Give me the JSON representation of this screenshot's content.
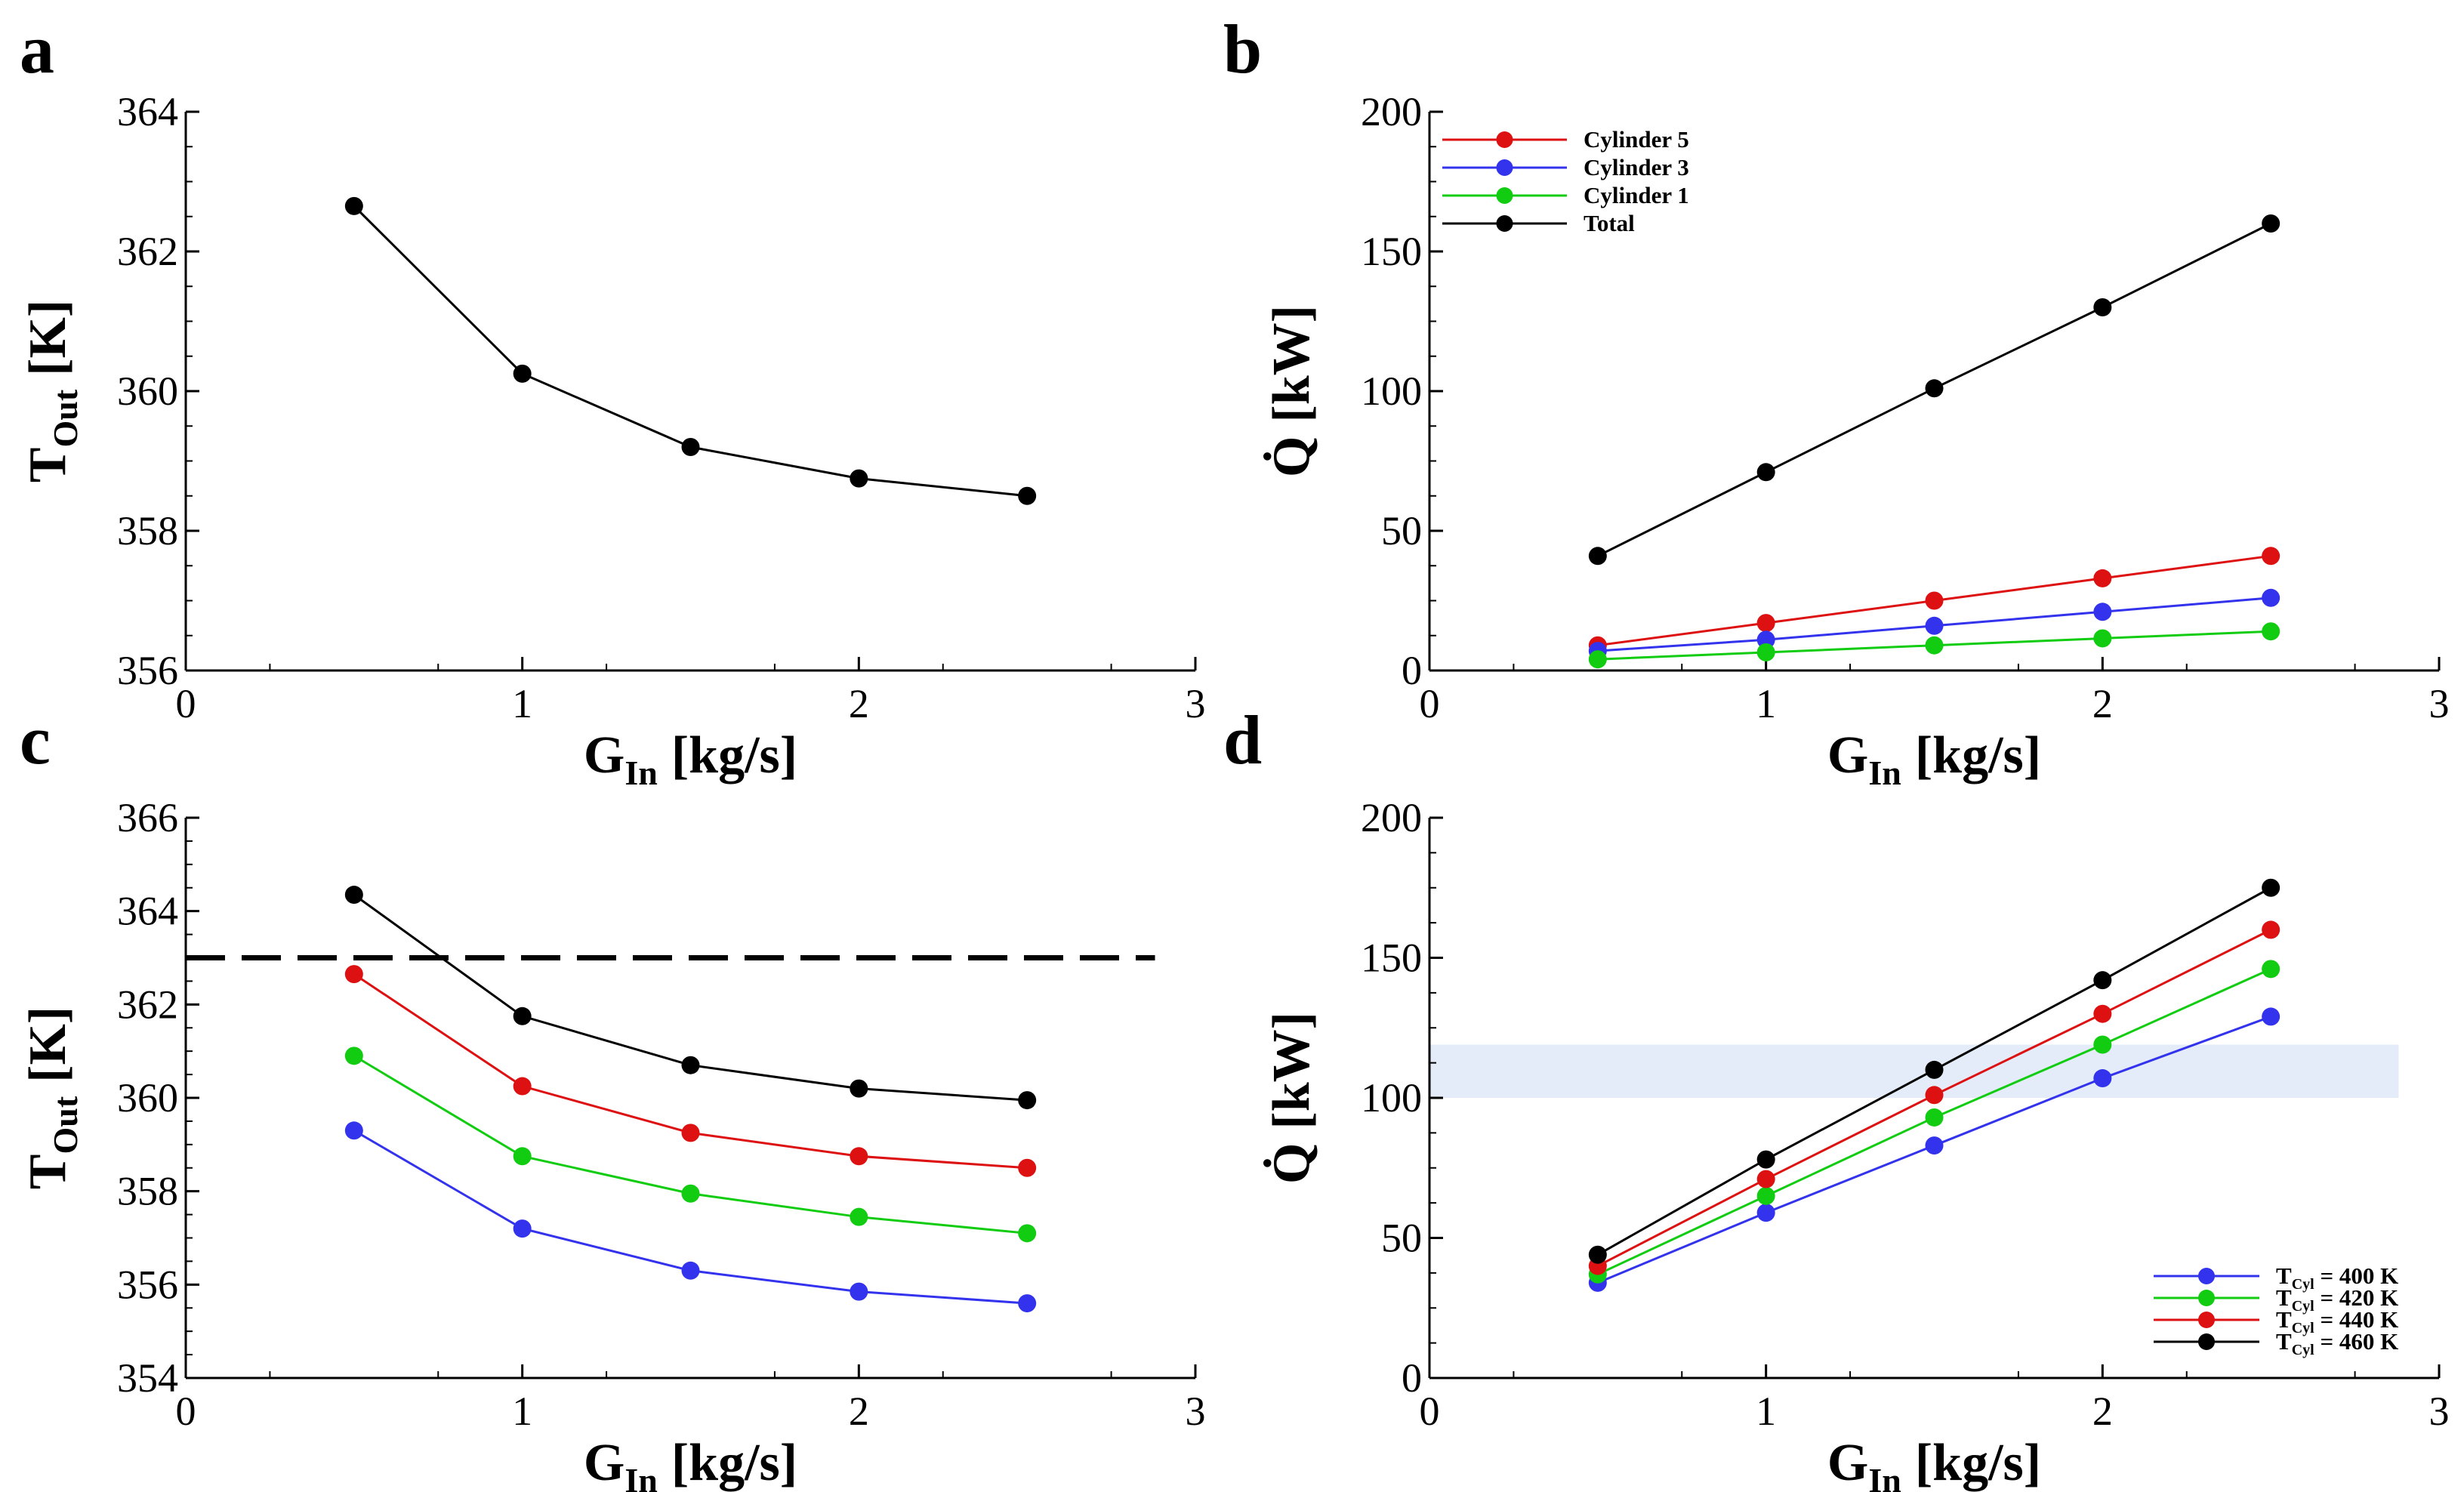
{
  "figure": {
    "panels": [
      "a",
      "b",
      "c",
      "d"
    ]
  },
  "chart_data": [
    {
      "panel": "a",
      "type": "line",
      "xlabel": "G",
      "xlabel_sub": "In",
      "xlabel_unit": "[kg/s]",
      "ylabel": "T",
      "ylabel_sub": "Out",
      "ylabel_unit": "[K]",
      "xlim": [
        0,
        3
      ],
      "ylim": [
        356,
        364
      ],
      "xticks": [
        0,
        1,
        2,
        3
      ],
      "yticks": [
        356,
        358,
        360,
        362,
        364
      ],
      "series": [
        {
          "name": "T_Out",
          "color": "#000000",
          "x": [
            0.5,
            1.0,
            1.5,
            2.0,
            2.5
          ],
          "values": [
            362.65,
            360.25,
            359.2,
            358.75,
            358.5
          ]
        }
      ],
      "legend": []
    },
    {
      "panel": "b",
      "type": "line",
      "xlabel": "G",
      "xlabel_sub": "In",
      "xlabel_unit": "[kg/s]",
      "ylabel": "Q̇",
      "ylabel_sub": "",
      "ylabel_unit": "[kW]",
      "xlim": [
        0,
        3
      ],
      "ylim": [
        0,
        200
      ],
      "xticks": [
        0,
        1,
        2,
        3
      ],
      "yticks": [
        0,
        50,
        100,
        150,
        200
      ],
      "legend_position": "top-left",
      "series": [
        {
          "name": "Cylinder 5",
          "color": "#dd1111",
          "x": [
            0.5,
            1.0,
            1.5,
            2.0,
            2.5
          ],
          "values": [
            9,
            17,
            25,
            33,
            41
          ]
        },
        {
          "name": "Cylinder 3",
          "color": "#3333ee",
          "x": [
            0.5,
            1.0,
            1.5,
            2.0,
            2.5
          ],
          "values": [
            7,
            11,
            16,
            21,
            26
          ]
        },
        {
          "name": "Cylinder 1",
          "color": "#11cc11",
          "x": [
            0.5,
            1.0,
            1.5,
            2.0,
            2.5
          ],
          "values": [
            4,
            6.5,
            9,
            11.5,
            14
          ]
        },
        {
          "name": "Total",
          "color": "#000000",
          "x": [
            0.5,
            1.0,
            1.5,
            2.0,
            2.5
          ],
          "values": [
            41,
            71,
            101,
            130,
            160
          ]
        }
      ],
      "legend": [
        {
          "label": "Cylinder 5",
          "sub": "",
          "suffix": "",
          "color": "#dd1111"
        },
        {
          "label": "Cylinder 3",
          "sub": "",
          "suffix": "",
          "color": "#3333ee"
        },
        {
          "label": "Cylinder 1",
          "sub": "",
          "suffix": "",
          "color": "#11cc11"
        },
        {
          "label": "Total",
          "sub": "",
          "suffix": "",
          "color": "#000000"
        }
      ]
    },
    {
      "panel": "c",
      "type": "line",
      "xlabel": "G",
      "xlabel_sub": "In",
      "xlabel_unit": "[kg/s]",
      "ylabel": "T",
      "ylabel_sub": "Out",
      "ylabel_unit": "[K]",
      "xlim": [
        0,
        3
      ],
      "ylim": [
        354,
        366
      ],
      "xticks": [
        0,
        1,
        2,
        3
      ],
      "yticks": [
        354,
        356,
        358,
        360,
        362,
        364,
        366
      ],
      "reference_line": {
        "y": 363,
        "x_range": [
          0,
          2.88
        ],
        "style": "dashed",
        "color": "#000000"
      },
      "series": [
        {
          "name": "T_Cyl = 460 K",
          "color": "#000000",
          "x": [
            0.5,
            1.0,
            1.5,
            2.0,
            2.5
          ],
          "values": [
            364.35,
            361.75,
            360.7,
            360.2,
            359.95
          ]
        },
        {
          "name": "T_Cyl = 440 K",
          "color": "#dd1111",
          "x": [
            0.5,
            1.0,
            1.5,
            2.0,
            2.5
          ],
          "values": [
            362.65,
            360.25,
            359.25,
            358.75,
            358.5
          ]
        },
        {
          "name": "T_Cyl = 420 K",
          "color": "#11cc11",
          "x": [
            0.5,
            1.0,
            1.5,
            2.0,
            2.5
          ],
          "values": [
            360.9,
            358.75,
            357.95,
            357.45,
            357.1
          ]
        },
        {
          "name": "T_Cyl = 400 K",
          "color": "#3333ee",
          "x": [
            0.5,
            1.0,
            1.5,
            2.0,
            2.5
          ],
          "values": [
            359.3,
            357.2,
            356.3,
            355.85,
            355.6
          ]
        }
      ],
      "legend": []
    },
    {
      "panel": "d",
      "type": "line",
      "xlabel": "G",
      "xlabel_sub": "In",
      "xlabel_unit": "[kg/s]",
      "ylabel": "Q̇",
      "ylabel_sub": "",
      "ylabel_unit": "[kW]",
      "xlim": [
        0,
        3
      ],
      "ylim": [
        0,
        200
      ],
      "xticks": [
        0,
        1,
        2,
        3
      ],
      "yticks": [
        0,
        50,
        100,
        150,
        200
      ],
      "shaded_band": {
        "y_range": [
          100,
          119
        ],
        "x_range": [
          0,
          2.88
        ],
        "color": "#e3ecf8"
      },
      "legend_position": "bottom-right",
      "series": [
        {
          "name": "T_Cyl = 400 K",
          "color": "#3333ee",
          "x": [
            0.5,
            1.0,
            1.5,
            2.0,
            2.5
          ],
          "values": [
            34,
            59,
            83,
            107,
            129
          ]
        },
        {
          "name": "T_Cyl = 420 K",
          "color": "#11cc11",
          "x": [
            0.5,
            1.0,
            1.5,
            2.0,
            2.5
          ],
          "values": [
            37,
            65,
            93,
            119,
            146
          ]
        },
        {
          "name": "T_Cyl = 440 K",
          "color": "#dd1111",
          "x": [
            0.5,
            1.0,
            1.5,
            2.0,
            2.5
          ],
          "values": [
            40,
            71,
            101,
            130,
            160
          ]
        },
        {
          "name": "T_Cyl = 460 K",
          "color": "#000000",
          "x": [
            0.5,
            1.0,
            1.5,
            2.0,
            2.5
          ],
          "values": [
            44,
            78,
            110,
            142,
            175
          ]
        }
      ],
      "legend": [
        {
          "label": "T",
          "sub": "Cyl",
          "suffix": " = 400 K",
          "color": "#3333ee"
        },
        {
          "label": "T",
          "sub": "Cyl",
          "suffix": " = 420 K",
          "color": "#11cc11"
        },
        {
          "label": "T",
          "sub": "Cyl",
          "suffix": " = 440 K",
          "color": "#dd1111"
        },
        {
          "label": "T",
          "sub": "Cyl",
          "suffix": " = 460 K",
          "color": "#000000"
        }
      ]
    }
  ]
}
